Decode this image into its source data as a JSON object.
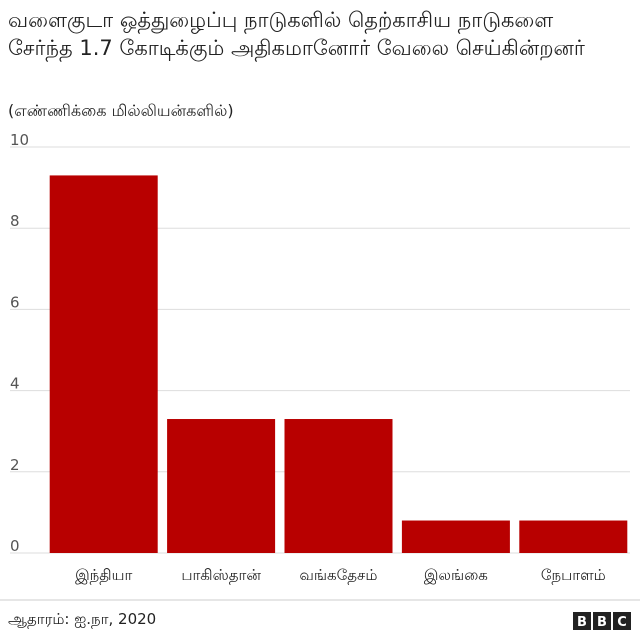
{
  "chart_data": {
    "type": "bar",
    "title": "வளைகுடா ஒத்துழைப்பு நாடுகளில் தெற்காசிய நாடுகளை சேர்ந்த 1.7 கோடிக்கும் அதிகமானோர் வேலை செய்கின்றனர்",
    "subtitle": "(எண்ணிக்கை மில்லியன்களில்)",
    "categories": [
      "இந்தியா",
      "பாகிஸ்தான்",
      "வங்கதேசம்",
      "இலங்கை",
      "நேபாளம்"
    ],
    "values": [
      9.3,
      3.3,
      3.3,
      0.8,
      0.8
    ],
    "color": "#b80000",
    "ylim": [
      0,
      10
    ],
    "yticks": [
      0,
      2,
      4,
      6,
      8,
      10
    ],
    "grid": true,
    "source": "ஆதாரம்: ஐ.நா, 2020",
    "logo": "BBC"
  }
}
